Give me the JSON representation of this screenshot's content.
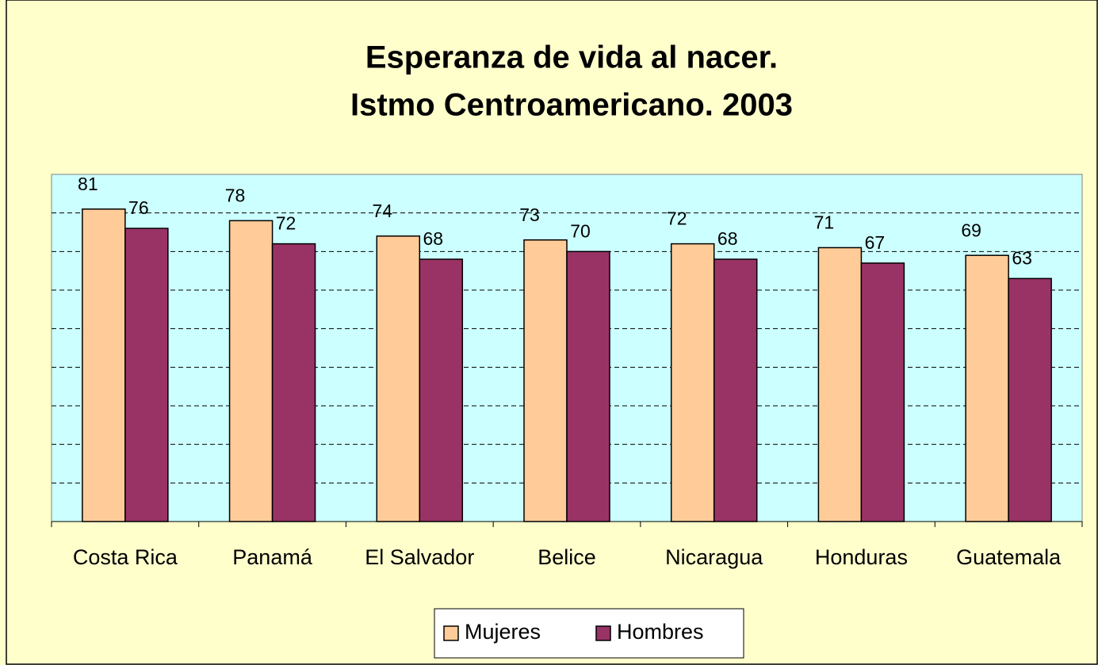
{
  "chart_data": {
    "type": "bar",
    "title": "Esperanza de vida al nacer.",
    "subtitle": "Istmo Centroamericano. 2003",
    "categories": [
      "Costa Rica",
      "Panamá",
      "El Salvador",
      "Belice",
      "Nicaragua",
      "Honduras",
      "Guatemala"
    ],
    "series": [
      {
        "name": "Mujeres",
        "color": "#FFCC99",
        "values": [
          81,
          78,
          74,
          73,
          72,
          71,
          69
        ]
      },
      {
        "name": "Hombres",
        "color": "#993366",
        "values": [
          76,
          72,
          68,
          70,
          68,
          67,
          63
        ]
      }
    ],
    "ylim": [
      0,
      90
    ],
    "yticks": [
      0,
      10,
      20,
      30,
      40,
      50,
      60,
      70,
      80,
      90
    ],
    "grid": true,
    "legend": "bottom"
  }
}
